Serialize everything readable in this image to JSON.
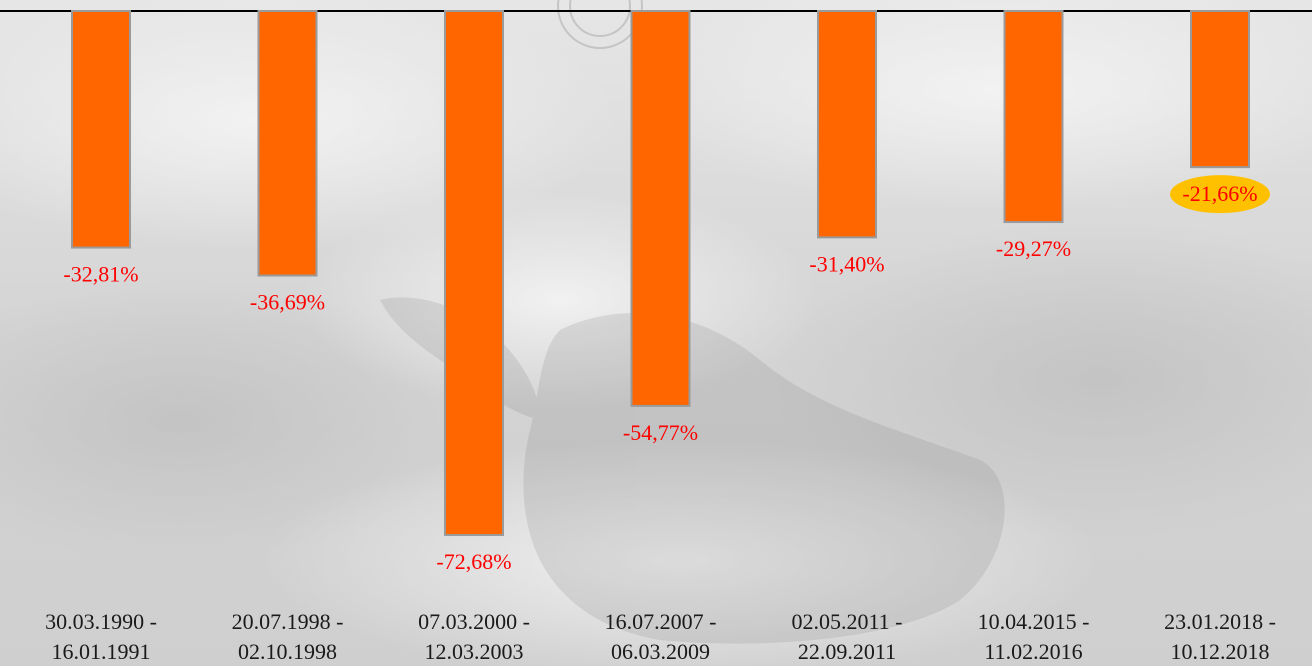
{
  "chart_data": {
    "type": "bar",
    "categories": [
      [
        "30.03.1990 -",
        "16.01.1991"
      ],
      [
        "20.07.1998 -",
        "02.10.1998"
      ],
      [
        "07.03.2000 -",
        "12.03.2003"
      ],
      [
        "16.07.2007 -",
        "06.03.2009"
      ],
      [
        "02.05.2011 -",
        "22.09.2011"
      ],
      [
        "10.04.2015 -",
        "11.02.2016"
      ],
      [
        "23.01.2018 -",
        "10.12.2018"
      ]
    ],
    "values": [
      -32.81,
      -36.69,
      -72.68,
      -54.77,
      -31.4,
      -29.27,
      -21.66
    ],
    "data_labels": [
      "-32,81%",
      "-36,69%",
      "-72,68%",
      "-54,77%",
      "-31,40%",
      "-29,27%",
      "-21,66%"
    ],
    "highlighted_index": 6,
    "ylim": [
      -75,
      0
    ],
    "grid": false,
    "colors": {
      "bar": "#ff6600",
      "bar_edge": "#9a9a9a",
      "label": "#ff0000",
      "highlight_fill": "#ffc000",
      "axis": "#000000",
      "category_text": "#1a1a1a"
    }
  }
}
